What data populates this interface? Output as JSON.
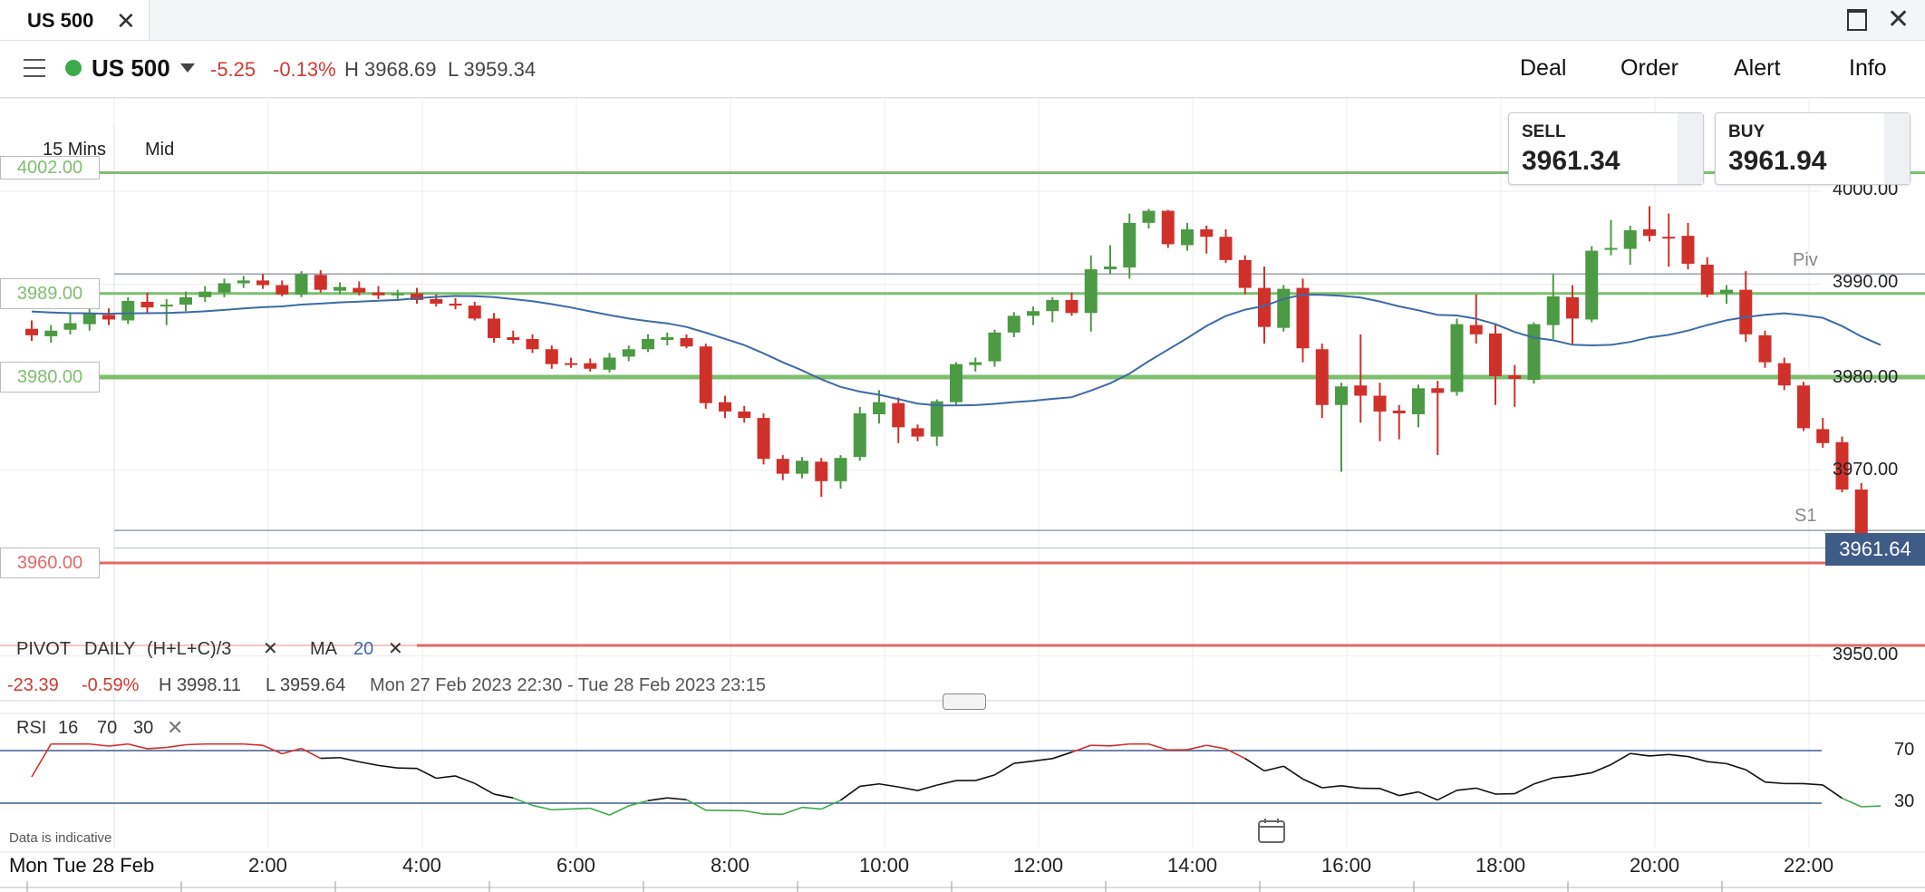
{
  "tab": {
    "title": "US 500"
  },
  "header": {
    "market_name": "US 500",
    "change": "-5.25",
    "change_pct": "-0.13%",
    "high": "H 3968.69",
    "low": "L 3959.34",
    "nav": [
      "Deal",
      "Order",
      "Alert",
      "Info"
    ]
  },
  "timeframe": "15 Mins",
  "price_type": "Mid",
  "quote": {
    "sell_label": "SELL",
    "sell_price": "3961.34",
    "buy_label": "BUY",
    "buy_price": "3961.94"
  },
  "current_price": "3961.64",
  "levels": {
    "l4002": "4002.00",
    "l3989": "3989.00",
    "l3980": "3980.00",
    "l3960": "3960.00",
    "piv": "Piv",
    "s1": "S1"
  },
  "y_axis_labels": [
    "4000.00",
    "3990.00",
    "3980.00",
    "3970.00",
    "3950.00"
  ],
  "indicators": {
    "pivot": "PIVOT",
    "pivot_period": "DAILY",
    "pivot_formula": "(H+L+C)/3",
    "ma": "MA",
    "ma_period": "20"
  },
  "summary": {
    "change": "-23.39",
    "change_pct": "-0.59%",
    "high": "H 3998.11",
    "low": "L 3959.64",
    "range": "Mon 27 Feb 2023 22:30 - Tue 28 Feb 2023 23:15"
  },
  "rsi": {
    "label": "RSI",
    "period": "16",
    "upper": "70",
    "lower": "30"
  },
  "rsi_y_labels": [
    "70",
    "30"
  ],
  "disclaimer": "Data is indicative",
  "x_axis": {
    "date_label": "Mon   Tue 28 Feb",
    "ticks": [
      "2:00",
      "4:00",
      "6:00",
      "8:00",
      "10:00",
      "12:00",
      "14:00",
      "16:00",
      "18:00",
      "20:00",
      "22:00"
    ]
  },
  "colors": {
    "up": "#4c9a44",
    "down": "#d0302a",
    "ma": "#3f6aa6",
    "support": "#7dbf6e",
    "resistance": "#e06a66"
  },
  "icons": {
    "menu": "hamburger-icon",
    "close": "close-icon",
    "maximize": "maximize-icon",
    "calendar": "calendar-icon",
    "dropdown": "chevron-down-icon"
  },
  "chart_data": {
    "type": "candlestick",
    "interval": "15 Mins",
    "y_range": [
      3942,
      4005
    ],
    "ma_period": 20,
    "ohlc": [
      [
        3985.2,
        3986.1,
        3983.9,
        3984.5
      ],
      [
        3984.4,
        3985.6,
        3983.7,
        3985.0
      ],
      [
        3985.1,
        3986.8,
        3984.6,
        3985.8
      ],
      [
        3985.7,
        3987.7,
        3985.0,
        3986.8
      ],
      [
        3986.7,
        3987.4,
        3985.6,
        3986.2
      ],
      [
        3986.1,
        3988.6,
        3985.7,
        3988.2
      ],
      [
        3988.1,
        3989.1,
        3986.9,
        3987.5
      ],
      [
        3987.6,
        3988.4,
        3985.6,
        3987.8
      ],
      [
        3987.8,
        3989.2,
        3987.1,
        3988.6
      ],
      [
        3988.6,
        3989.8,
        3988.1,
        3989.2
      ],
      [
        3989.1,
        3990.6,
        3988.6,
        3990.1
      ],
      [
        3990.1,
        3990.9,
        3989.6,
        3990.4
      ],
      [
        3990.4,
        3991.1,
        3989.5,
        3989.9
      ],
      [
        3989.9,
        3990.4,
        3988.7,
        3988.9
      ],
      [
        3988.9,
        3991.4,
        3988.6,
        3991.1
      ],
      [
        3991.0,
        3991.5,
        3989.1,
        3989.4
      ],
      [
        3989.3,
        3990.2,
        3988.9,
        3989.7
      ],
      [
        3989.6,
        3990.3,
        3988.8,
        3989.1
      ],
      [
        3989.1,
        3989.8,
        3988.4,
        3988.8
      ],
      [
        3988.8,
        3989.4,
        3988.2,
        3989.0
      ],
      [
        3989.0,
        3989.6,
        3987.9,
        3988.3
      ],
      [
        3988.4,
        3988.9,
        3987.6,
        3987.9
      ],
      [
        3987.9,
        3988.5,
        3987.3,
        3987.7
      ],
      [
        3987.7,
        3988.1,
        3986.1,
        3986.3
      ],
      [
        3986.3,
        3986.9,
        3983.7,
        3984.2
      ],
      [
        3984.3,
        3985.0,
        3983.6,
        3984.0
      ],
      [
        3984.1,
        3984.6,
        3982.6,
        3983.0
      ],
      [
        3983.0,
        3983.4,
        3980.9,
        3981.4
      ],
      [
        3981.5,
        3982.1,
        3981.0,
        3981.4
      ],
      [
        3981.5,
        3982.0,
        3980.6,
        3980.9
      ],
      [
        3980.8,
        3982.6,
        3980.5,
        3982.1
      ],
      [
        3982.2,
        3983.4,
        3981.7,
        3983.0
      ],
      [
        3983.0,
        3984.6,
        3982.7,
        3984.1
      ],
      [
        3984.0,
        3984.8,
        3983.4,
        3984.3
      ],
      [
        3984.2,
        3984.6,
        3983.1,
        3983.3
      ],
      [
        3983.3,
        3983.6,
        3976.6,
        3977.2
      ],
      [
        3977.3,
        3978.0,
        3975.6,
        3976.3
      ],
      [
        3976.3,
        3976.9,
        3975.1,
        3975.6
      ],
      [
        3975.6,
        3976.1,
        3970.6,
        3971.2
      ],
      [
        3971.2,
        3971.6,
        3968.9,
        3969.6
      ],
      [
        3969.6,
        3971.4,
        3969.1,
        3971.0
      ],
      [
        3970.9,
        3971.3,
        3967.1,
        3968.8
      ],
      [
        3968.8,
        3971.6,
        3968.0,
        3971.3
      ],
      [
        3971.4,
        3976.8,
        3971.0,
        3976.1
      ],
      [
        3976.0,
        3978.6,
        3975.0,
        3977.3
      ],
      [
        3977.2,
        3977.8,
        3972.9,
        3974.6
      ],
      [
        3974.5,
        3974.9,
        3973.1,
        3973.6
      ],
      [
        3973.6,
        3977.6,
        3972.6,
        3977.4
      ],
      [
        3977.3,
        3981.6,
        3976.9,
        3981.4
      ],
      [
        3981.3,
        3982.1,
        3980.6,
        3981.6
      ],
      [
        3981.7,
        3985.1,
        3981.1,
        3984.8
      ],
      [
        3984.8,
        3987.0,
        3984.3,
        3986.6
      ],
      [
        3986.6,
        3987.6,
        3985.6,
        3987.1
      ],
      [
        3987.1,
        3988.6,
        3985.9,
        3988.3
      ],
      [
        3988.3,
        3989.1,
        3986.6,
        3986.9
      ],
      [
        3986.9,
        3993.1,
        3984.9,
        3991.6
      ],
      [
        3991.6,
        3994.2,
        3991.1,
        3991.9
      ],
      [
        3991.8,
        3997.6,
        3990.6,
        3996.6
      ],
      [
        3996.6,
        3998.1,
        3996.0,
        3997.9
      ],
      [
        3997.9,
        3998.0,
        3993.9,
        3994.3
      ],
      [
        3994.2,
        3996.6,
        3993.6,
        3995.9
      ],
      [
        3995.9,
        3996.3,
        3993.3,
        3995.1
      ],
      [
        3995.1,
        3995.9,
        3992.3,
        3992.6
      ],
      [
        3992.6,
        3993.1,
        3988.9,
        3989.6
      ],
      [
        3989.6,
        3991.9,
        3983.6,
        3985.4
      ],
      [
        3985.3,
        3989.9,
        3984.9,
        3989.5
      ],
      [
        3989.6,
        3990.6,
        3981.6,
        3983.1
      ],
      [
        3983.0,
        3983.6,
        3975.6,
        3977.0
      ],
      [
        3977.0,
        3979.4,
        3969.8,
        3979.0
      ],
      [
        3979.1,
        3984.6,
        3975.1,
        3978.0
      ],
      [
        3978.0,
        3979.4,
        3973.1,
        3976.3
      ],
      [
        3976.4,
        3977.0,
        3973.3,
        3976.1
      ],
      [
        3976.0,
        3979.2,
        3974.6,
        3978.8
      ],
      [
        3978.8,
        3979.6,
        3971.6,
        3978.3
      ],
      [
        3978.4,
        3986.3,
        3978.0,
        3985.7
      ],
      [
        3985.6,
        3988.9,
        3983.6,
        3984.6
      ],
      [
        3984.7,
        3985.8,
        3977.0,
        3980.1
      ],
      [
        3980.2,
        3981.3,
        3976.8,
        3979.8
      ],
      [
        3979.7,
        3985.9,
        3979.3,
        3985.7
      ],
      [
        3985.6,
        3991.1,
        3984.1,
        3988.7
      ],
      [
        3988.6,
        3989.9,
        3983.6,
        3986.3
      ],
      [
        3986.2,
        3994.1,
        3985.9,
        3993.6
      ],
      [
        3993.7,
        3996.9,
        3993.1,
        3993.9
      ],
      [
        3993.8,
        3996.3,
        3992.1,
        3995.8
      ],
      [
        3995.9,
        3998.4,
        3994.6,
        3995.2
      ],
      [
        3995.1,
        3997.6,
        3991.9,
        3995.0
      ],
      [
        3995.2,
        3996.6,
        3991.6,
        3992.2
      ],
      [
        3992.1,
        3992.9,
        3988.6,
        3988.9
      ],
      [
        3989.0,
        3989.9,
        3987.9,
        3989.4
      ],
      [
        3989.4,
        3991.4,
        3983.8,
        3984.6
      ],
      [
        3984.5,
        3985.0,
        3981.0,
        3981.6
      ],
      [
        3981.5,
        3982.1,
        3978.6,
        3979.1
      ],
      [
        3979.1,
        3979.5,
        3974.2,
        3974.5
      ],
      [
        3974.4,
        3975.6,
        3972.4,
        3972.9
      ],
      [
        3973.0,
        3973.6,
        3967.6,
        3967.9
      ],
      [
        3967.9,
        3968.6,
        3961.6,
        3962.3
      ],
      [
        3962.4,
        3962.7,
        3961.2,
        3961.6
      ]
    ]
  }
}
